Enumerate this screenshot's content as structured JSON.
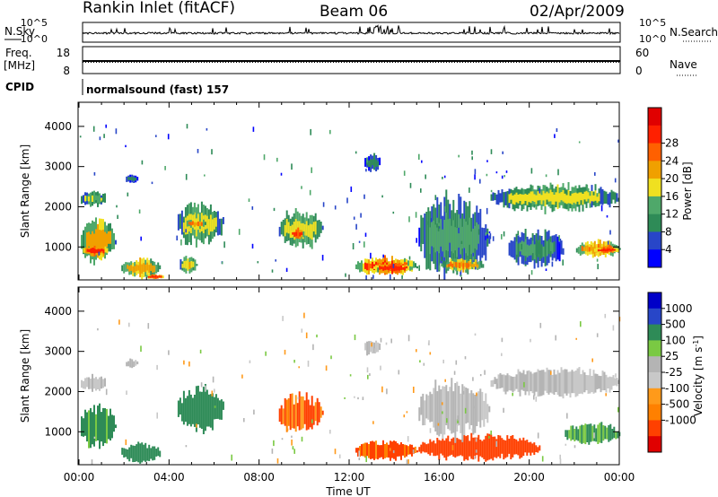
{
  "header": {
    "station": "Rankin Inlet (fitACF)",
    "beam": "Beam 06",
    "date": "02/Apr/2009"
  },
  "summary_panels": {
    "nsky_label": "N.Sky",
    "nsearch_label": "N.Search",
    "nsky_ticks": [
      "10^5",
      "10^0"
    ],
    "nsky_right_ticks": [
      "10^5",
      "10^0"
    ],
    "freq_label_1": "Freq.",
    "freq_label_2": "[MHz]",
    "freq_ticks": [
      "18",
      "8"
    ],
    "nave_label": "Nave",
    "nave_ticks": [
      "60",
      "0"
    ],
    "cpid_label": "CPID",
    "cpid_text": "normalsound (fast) 157"
  },
  "colors": {
    "power_scale": [
      "#0000ff",
      "#2846c8",
      "#2e8b57",
      "#4fa86a",
      "#f0e020",
      "#f0a000",
      "#ff6000",
      "#ff2000",
      "#e00000"
    ],
    "velocity_scale": [
      "#e00000",
      "#ff4000",
      "#ff8000",
      "#ff9a1a",
      "#c8c8c8",
      "#b4b4b4",
      "#7ac943",
      "#2e8b57",
      "#2846c8",
      "#0000c8"
    ]
  },
  "chart_data": [
    {
      "type": "heatmap",
      "title": "",
      "xlabel": "",
      "ylabel": "Slant Range [km]",
      "x_ticks": [
        "00:00",
        "04:00",
        "08:00",
        "12:00",
        "16:00",
        "20:00",
        "00:00"
      ],
      "y_ticks": [
        "1000",
        "2000",
        "3000",
        "4000"
      ],
      "xlim": [
        0,
        24
      ],
      "ylim": [
        180,
        4600
      ],
      "colorbar_label": "Power [dB]",
      "colorbar_ticks": [
        "4",
        "8",
        "12",
        "16",
        "20",
        "24",
        "28"
      ],
      "blobs": [
        {
          "x": [
            0.0,
            1.6
          ],
          "y": [
            650,
            1650
          ],
          "v": 18
        },
        {
          "x": [
            0.1,
            1.3
          ],
          "y": [
            780,
            1050
          ],
          "v": 27
        },
        {
          "x": [
            0.0,
            1.2
          ],
          "y": [
            2000,
            2400
          ],
          "v": 12
        },
        {
          "x": [
            1.8,
            3.6
          ],
          "y": [
            250,
            700
          ],
          "v": 18
        },
        {
          "x": [
            2.9,
            3.8
          ],
          "y": [
            200,
            320
          ],
          "v": 26
        },
        {
          "x": [
            4.3,
            6.4
          ],
          "y": [
            1050,
            2100
          ],
          "v": 14
        },
        {
          "x": [
            4.7,
            5.6
          ],
          "y": [
            1450,
            1700
          ],
          "v": 20
        },
        {
          "x": [
            4.4,
            5.2
          ],
          "y": [
            350,
            750
          ],
          "v": 16
        },
        {
          "x": [
            8.8,
            10.8
          ],
          "y": [
            1000,
            1900
          ],
          "v": 14
        },
        {
          "x": [
            9.3,
            10.0
          ],
          "y": [
            1200,
            1450
          ],
          "v": 24
        },
        {
          "x": [
            2.0,
            2.6
          ],
          "y": [
            2600,
            2800
          ],
          "v": 6
        },
        {
          "x": [
            12.6,
            13.4
          ],
          "y": [
            2900,
            3300
          ],
          "v": 6
        },
        {
          "x": [
            12.2,
            15.0
          ],
          "y": [
            300,
            750
          ],
          "v": 24
        },
        {
          "x": [
            13.0,
            14.8
          ],
          "y": [
            350,
            600
          ],
          "v": 28
        },
        {
          "x": [
            15.0,
            18.2
          ],
          "y": [
            300,
            2200
          ],
          "v": 10
        },
        {
          "x": [
            18.2,
            24.0
          ],
          "y": [
            1900,
            2550
          ],
          "v": 14
        },
        {
          "x": [
            22.0,
            24.0
          ],
          "y": [
            750,
            1150
          ],
          "v": 20
        },
        {
          "x": [
            22.8,
            24.0
          ],
          "y": [
            850,
            1000
          ],
          "v": 27
        },
        {
          "x": [
            19.0,
            21.5
          ],
          "y": [
            500,
            1400
          ],
          "v": 9
        },
        {
          "x": [
            16.0,
            18.0
          ],
          "y": [
            400,
            700
          ],
          "v": 20
        }
      ]
    },
    {
      "type": "heatmap",
      "title": "",
      "xlabel": "Time UT",
      "ylabel": "Slant Range [km]",
      "x_ticks": [
        "00:00",
        "04:00",
        "08:00",
        "12:00",
        "16:00",
        "20:00",
        "00:00"
      ],
      "y_ticks": [
        "1000",
        "2000",
        "3000",
        "4000"
      ],
      "xlim": [
        0,
        24
      ],
      "ylim": [
        180,
        4600
      ],
      "colorbar_label": "Velocity [m s^-1]",
      "colorbar_ticks": [
        "1000",
        "500",
        "100",
        "25",
        "-25",
        "-100",
        "-500",
        "-1000"
      ],
      "blobs": [
        {
          "x": [
            0.0,
            1.6
          ],
          "y": [
            650,
            1650
          ],
          "v": 150
        },
        {
          "x": [
            0.0,
            1.2
          ],
          "y": [
            2000,
            2400
          ],
          "v": 0
        },
        {
          "x": [
            1.8,
            3.6
          ],
          "y": [
            250,
            700
          ],
          "v": 200
        },
        {
          "x": [
            4.3,
            6.4
          ],
          "y": [
            1050,
            2100
          ],
          "v": 300
        },
        {
          "x": [
            8.8,
            10.8
          ],
          "y": [
            1000,
            1900
          ],
          "v": -120
        },
        {
          "x": [
            2.0,
            2.6
          ],
          "y": [
            2600,
            2800
          ],
          "v": 0
        },
        {
          "x": [
            12.2,
            15.0
          ],
          "y": [
            300,
            750
          ],
          "v": -150
        },
        {
          "x": [
            15.0,
            20.5
          ],
          "y": [
            300,
            900
          ],
          "v": -300
        },
        {
          "x": [
            15.0,
            18.2
          ],
          "y": [
            900,
            2200
          ],
          "v": 0
        },
        {
          "x": [
            18.2,
            24.0
          ],
          "y": [
            1900,
            2550
          ],
          "v": 0
        },
        {
          "x": [
            21.5,
            24.0
          ],
          "y": [
            700,
            1200
          ],
          "v": 150
        },
        {
          "x": [
            12.6,
            13.4
          ],
          "y": [
            2900,
            3300
          ],
          "v": 0
        }
      ]
    }
  ]
}
